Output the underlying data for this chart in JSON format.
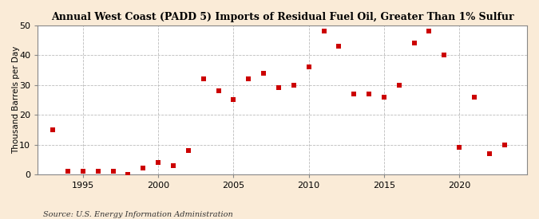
{
  "title": "Annual West Coast (PADD 5) Imports of Residual Fuel Oil, Greater Than 1% Sulfur",
  "ylabel": "Thousand Barrels per Day",
  "source": "Source: U.S. Energy Information Administration",
  "background_color": "#faebd7",
  "plot_bg_color": "#ffffff",
  "marker_color": "#cc0000",
  "years": [
    1993,
    1994,
    1995,
    1996,
    1997,
    1998,
    1999,
    2000,
    2001,
    2002,
    2003,
    2004,
    2005,
    2006,
    2007,
    2008,
    2009,
    2010,
    2011,
    2012,
    2013,
    2014,
    2015,
    2016,
    2017,
    2018,
    2019,
    2020,
    2021,
    2022,
    2023
  ],
  "values": [
    15,
    1,
    1,
    1,
    1,
    0,
    2,
    4,
    3,
    8,
    32,
    28,
    25,
    32,
    34,
    29,
    30,
    36,
    48,
    43,
    27,
    27,
    26,
    30,
    44,
    48,
    40,
    9,
    26,
    7,
    10
  ],
  "xlim": [
    1992,
    2024.5
  ],
  "ylim": [
    0,
    50
  ],
  "yticks": [
    0,
    10,
    20,
    30,
    40,
    50
  ],
  "xticks": [
    1995,
    2000,
    2005,
    2010,
    2015,
    2020
  ],
  "title_fontsize": 9.0,
  "ylabel_fontsize": 7.5,
  "tick_fontsize": 8.0,
  "source_fontsize": 7.0,
  "marker_size": 16,
  "grid_color": "#bbbbbb",
  "spine_color": "#888888"
}
